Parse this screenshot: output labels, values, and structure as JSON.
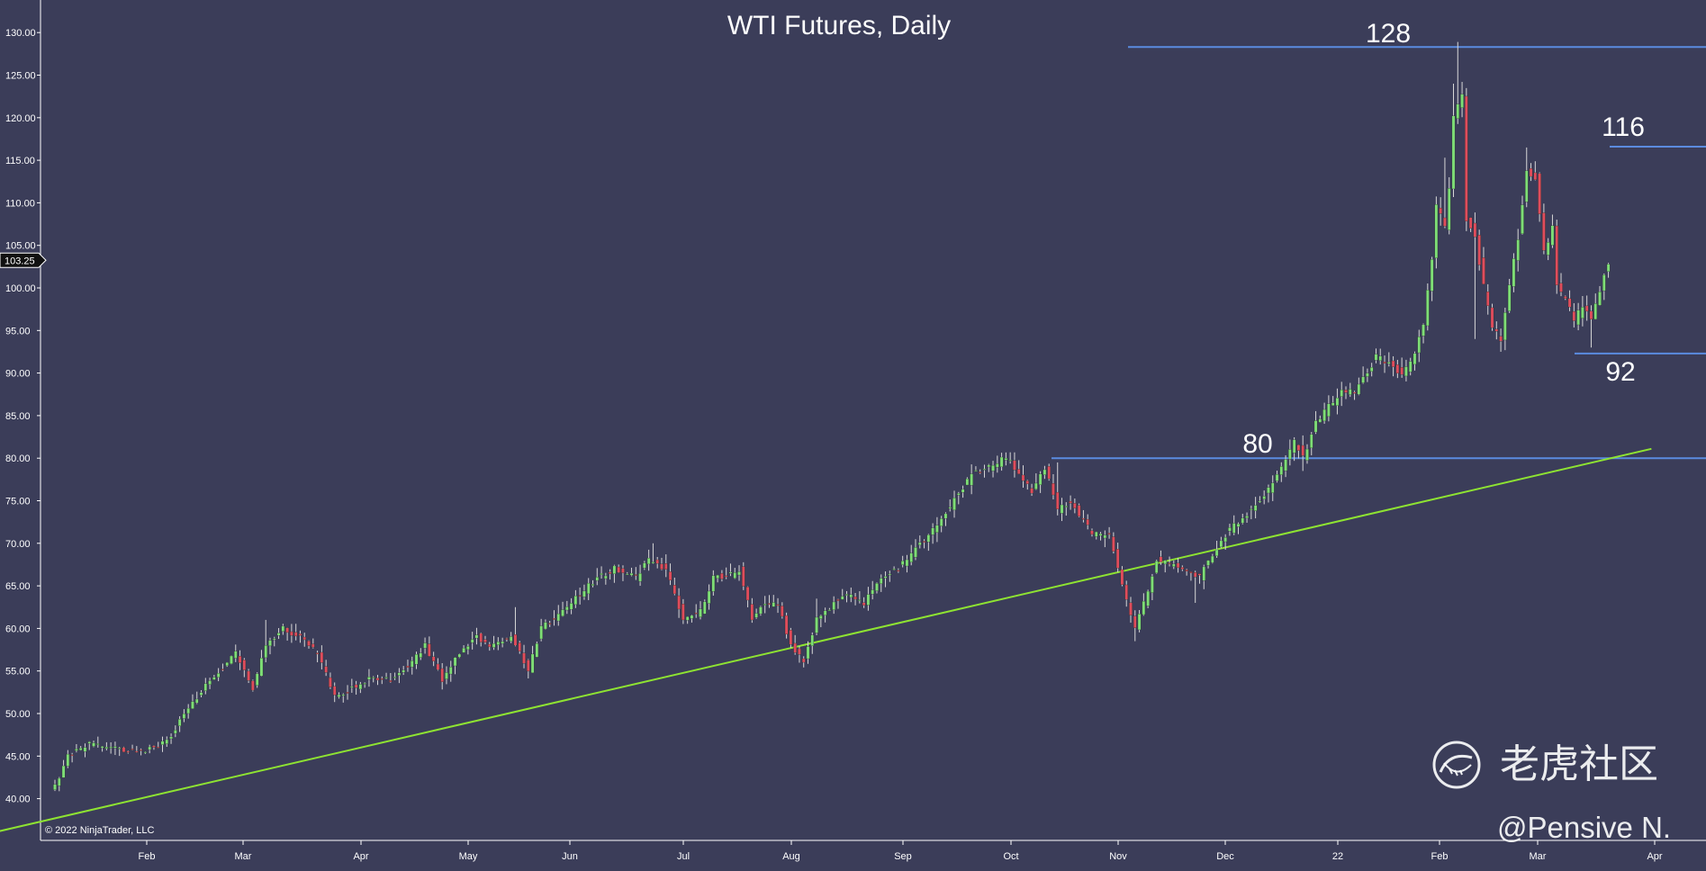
{
  "chart_data": {
    "type": "candlestick",
    "title": "WTI Futures, Daily",
    "ylim": [
      35,
      133.8
    ],
    "y_ticks": [
      "130.00",
      "125.00",
      "120.00",
      "115.00",
      "110.00",
      "105.00",
      "100.00",
      "95.00",
      "90.00",
      "85.00",
      "80.00",
      "75.00",
      "70.00",
      "65.00",
      "60.00",
      "55.00",
      "50.00",
      "45.00",
      "40.00"
    ],
    "x_ticks": [
      "Feb",
      "Mar",
      "Apr",
      "May",
      "Jun",
      "Jul",
      "Aug",
      "Sep",
      "Oct",
      "Nov",
      "Dec",
      "22",
      "Feb",
      "Mar",
      "Apr"
    ],
    "last_price": "103.25",
    "last_price_value": 103.25,
    "up_color": "#7ede76",
    "down_color": "#e04c5c",
    "wick_color": "#d8d8d8",
    "price_anchors": [
      [
        0,
        41.5
      ],
      [
        3,
        45
      ],
      [
        8,
        46.5
      ],
      [
        12,
        46
      ],
      [
        18,
        45.5
      ],
      [
        24,
        46
      ],
      [
        27,
        47.5
      ],
      [
        30,
        50
      ],
      [
        36,
        54
      ],
      [
        42,
        57
      ],
      [
        46,
        53
      ],
      [
        49,
        58
      ],
      [
        53,
        60
      ],
      [
        57,
        59
      ],
      [
        61,
        57
      ],
      [
        65,
        52
      ],
      [
        69,
        53
      ],
      [
        73,
        54
      ],
      [
        78,
        54
      ],
      [
        83,
        56
      ],
      [
        86,
        58
      ],
      [
        90,
        54
      ],
      [
        94,
        57
      ],
      [
        98,
        59
      ],
      [
        101,
        58
      ],
      [
        106,
        59
      ],
      [
        110,
        55
      ],
      [
        113,
        60
      ],
      [
        120,
        63
      ],
      [
        126,
        66
      ],
      [
        130,
        67
      ],
      [
        135,
        66
      ],
      [
        138,
        68
      ],
      [
        142,
        67
      ],
      [
        146,
        61
      ],
      [
        150,
        62
      ],
      [
        153,
        66
      ],
      [
        156,
        66
      ],
      [
        159,
        67
      ],
      [
        162,
        61
      ],
      [
        165,
        63
      ],
      [
        168,
        63
      ],
      [
        171,
        58
      ],
      [
        174,
        56
      ],
      [
        177,
        61
      ],
      [
        181,
        63
      ],
      [
        184,
        64
      ],
      [
        188,
        63
      ],
      [
        192,
        66
      ],
      [
        196,
        67
      ],
      [
        201,
        70
      ],
      [
        205,
        72
      ],
      [
        210,
        76
      ],
      [
        213,
        78
      ],
      [
        217,
        79
      ],
      [
        221,
        80
      ],
      [
        224,
        78.5
      ],
      [
        227,
        76
      ],
      [
        230,
        79
      ],
      [
        233,
        74
      ],
      [
        236,
        75
      ],
      [
        241,
        71
      ],
      [
        245,
        71
      ],
      [
        248,
        65
      ],
      [
        251,
        60
      ],
      [
        253,
        63
      ],
      [
        256,
        68
      ],
      [
        262,
        67
      ],
      [
        266,
        66
      ],
      [
        268,
        68
      ],
      [
        272,
        71
      ],
      [
        276,
        73
      ],
      [
        280,
        75
      ],
      [
        283,
        77
      ],
      [
        286,
        80
      ],
      [
        288,
        82
      ],
      [
        290,
        80
      ],
      [
        293,
        84
      ],
      [
        296,
        86
      ],
      [
        299,
        88
      ],
      [
        302,
        88
      ],
      [
        305,
        90
      ],
      [
        307,
        92
      ],
      [
        310,
        91
      ],
      [
        313,
        90
      ],
      [
        316,
        92
      ],
      [
        318,
        96
      ],
      [
        320,
        103
      ],
      [
        321,
        110
      ],
      [
        323,
        107
      ],
      [
        324,
        112
      ],
      [
        325,
        120
      ],
      [
        327,
        123
      ],
      [
        328,
        108
      ],
      [
        330,
        106
      ],
      [
        332,
        100
      ],
      [
        334,
        95
      ],
      [
        336,
        94
      ],
      [
        338,
        100
      ],
      [
        340,
        106
      ],
      [
        341,
        110
      ],
      [
        342,
        114
      ],
      [
        344,
        113
      ],
      [
        346,
        104
      ],
      [
        348,
        107
      ],
      [
        349,
        100
      ],
      [
        351,
        99
      ],
      [
        353,
        96
      ],
      [
        355,
        98
      ],
      [
        357,
        96
      ],
      [
        359,
        100
      ],
      [
        361,
        103
      ]
    ],
    "wick_spikes": [
      [
        49,
        61
      ],
      [
        107,
        62.5
      ],
      [
        139,
        70
      ],
      [
        177,
        63.5
      ],
      [
        222,
        80.5
      ],
      [
        233,
        79.5
      ],
      [
        251,
        58.5
      ],
      [
        265,
        63
      ],
      [
        290,
        78.5
      ],
      [
        323,
        115.3
      ],
      [
        325,
        124
      ],
      [
        326,
        128.9
      ],
      [
        330,
        94
      ],
      [
        336,
        93
      ],
      [
        342,
        116.5
      ],
      [
        357,
        93
      ]
    ],
    "levels": [
      {
        "label": "128",
        "value": 128.3
      },
      {
        "label": "116",
        "value": 116.6
      },
      {
        "label": "92",
        "value": 92.3
      },
      {
        "label": "80",
        "value": 80.0
      }
    ],
    "trendline": {
      "points": [
        [
          -23,
          35
        ],
        [
          371,
          81.1
        ]
      ]
    },
    "copyright": "© 2022 NinjaTrader, LLC",
    "watermark": "老虎社区",
    "author": "@Pensive N."
  }
}
